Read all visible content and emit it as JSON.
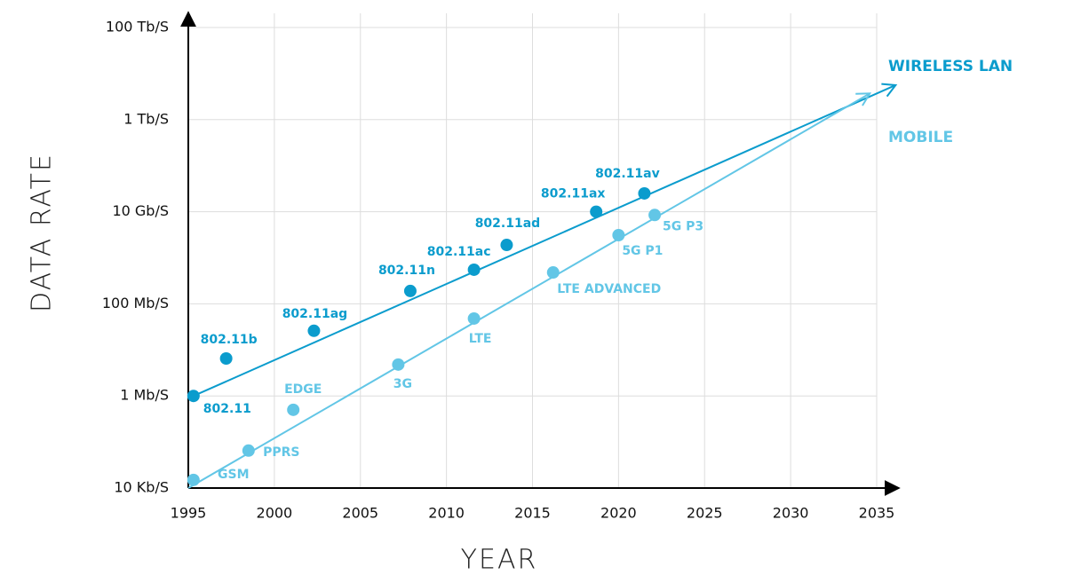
{
  "chart_data": {
    "type": "scatter",
    "x_label": "YEAR",
    "y_label": "DATA RATE",
    "xlim": [
      1995,
      2035
    ],
    "xticks": [
      1995,
      2000,
      2005,
      2010,
      2015,
      2020,
      2025,
      2030,
      2035
    ],
    "ylim": [
      10000,
      100000000000000
    ],
    "yticks": [
      {
        "value": 10000,
        "label": "10 Kb/S"
      },
      {
        "value": 1000000,
        "label": "1 Mb/S"
      },
      {
        "value": 100000000,
        "label": "100 Mb/S"
      },
      {
        "value": 10000000000,
        "label": "10 Gb/S"
      },
      {
        "value": 1000000000000,
        "label": "1 Tb/S"
      },
      {
        "value": 100000000000000,
        "label": "100 Tb/S"
      }
    ],
    "log_y": true,
    "grid": true,
    "series": [
      {
        "name": "WIRELESS LAN",
        "color": "#0b9ccd",
        "labels": [
          "802.11",
          "802.11b",
          "802.11ag",
          "802.11n",
          "802.11ac",
          "802.11ad",
          "802.11ax",
          "802.11av"
        ],
        "x": [
          1995.3,
          1997.2,
          2002.3,
          2007.9,
          2011.6,
          2013.5,
          2018.7,
          2021.5
        ],
        "values": [
          1000000,
          6500000,
          26000000,
          190000000,
          550000000,
          1900000000,
          10000000000,
          25000000000
        ],
        "trend_x": [
          1995.3,
          2036.1
        ],
        "trend_values": [
          1000000,
          5600000000000
        ]
      },
      {
        "name": "MOBILE",
        "color": "#62c6e6",
        "labels": [
          "GSM",
          "PPRS",
          "EDGE",
          "3G",
          "LTE",
          "LTE ADVANCED",
          "5G P1",
          "5G P3"
        ],
        "x": [
          1995.3,
          1998.5,
          2001.1,
          2007.2,
          2011.6,
          2016.2,
          2020.0,
          2022.1
        ],
        "values": [
          15000,
          65000,
          500000,
          4800000,
          48000000,
          480000000,
          3100000000,
          8500000000
        ],
        "trend_x": [
          1995,
          2034.6
        ],
        "trend_values": [
          10000,
          3700000000000
        ]
      }
    ]
  }
}
